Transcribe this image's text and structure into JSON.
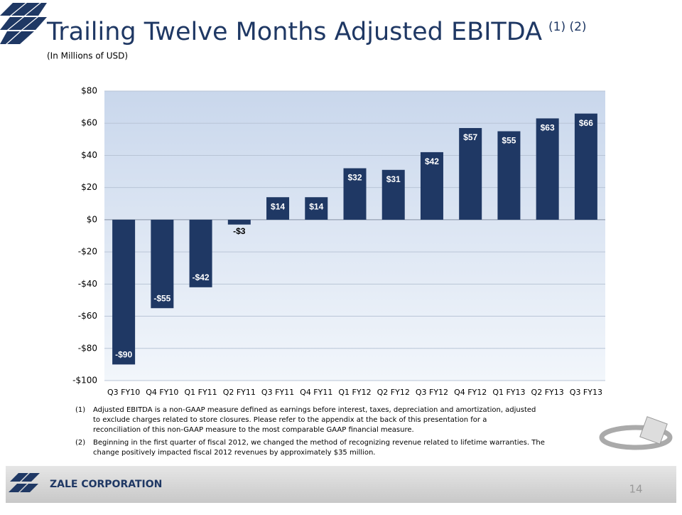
{
  "slide": {
    "title": "Trailing Twelve Months Adjusted EBITDA",
    "title_note": "(1) (2)",
    "footnotes": [
      {
        "marker": "(1)",
        "lines": [
          "Adjusted EBITDA  is a non-GAAP measure defined as earnings before interest, taxes, depreciation and amortization,  adjusted",
          "to exclude charges related to store closures.  Please refer to the appendix at the back of this presentation for a",
          "reconciliation of this non-GAAP measure to the most  comparable GAAP financial measure."
        ]
      },
      {
        "marker": "(2)",
        "lines": [
          "Beginning in the first quarter of fiscal 2012, we changed the method of recognizing revenue related to lifetime warranties.  The",
          "change positively impacted fiscal 2012 revenues by approximately $35 million."
        ]
      }
    ],
    "company": "ZALE CORPORATION",
    "page_number": 14
  },
  "chart_data": {
    "type": "bar",
    "subtitle": "(In Millions of USD)",
    "categories": [
      "Q3 FY10",
      "Q4 FY10",
      "Q1 FY11",
      "Q2 FY11",
      "Q3 FY11",
      "Q4 FY11",
      "Q1 FY12",
      "Q2 FY12",
      "Q3 FY12",
      "Q4 FY12",
      "Q1 FY13",
      "Q2 FY13",
      "Q3 FY13"
    ],
    "values": [
      -90,
      -55,
      -42,
      -3,
      14,
      14,
      32,
      31,
      42,
      57,
      55,
      63,
      66
    ],
    "value_labels": [
      "-$90",
      "-$55",
      "-$42",
      "-$3",
      "$14",
      "$14",
      "$32",
      "$31",
      "$42",
      "$57",
      "$55",
      "$63",
      "$66"
    ],
    "color": "#1f3864",
    "ylim": [
      -100,
      80
    ],
    "yticks": [
      {
        "value": -100,
        "label": "-$100"
      },
      {
        "value": -80,
        "label": "-$80"
      },
      {
        "value": -60,
        "label": "-$60"
      },
      {
        "value": -40,
        "label": "-$40"
      },
      {
        "value": -20,
        "label": "-$20"
      },
      {
        "value": 0,
        "label": "$0"
      },
      {
        "value": 20,
        "label": "$20"
      },
      {
        "value": 40,
        "label": "$40"
      },
      {
        "value": 60,
        "label": "$60"
      },
      {
        "value": 80,
        "label": "$80"
      }
    ],
    "grid": true
  }
}
